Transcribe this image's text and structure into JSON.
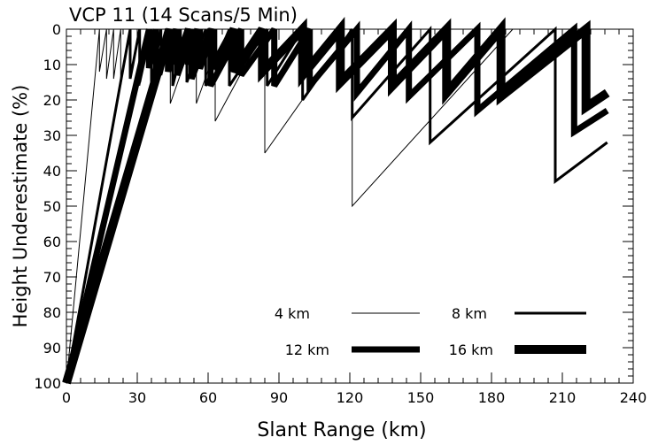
{
  "chart_data": {
    "type": "line",
    "title": "VCP 11 (14 Scans/5 Min)",
    "xlabel": "Slant Range (km)",
    "ylabel": "Height Underestimate (%)",
    "xlim": [
      0,
      240
    ],
    "ylim": [
      0,
      100
    ],
    "y_axis_inverted": true,
    "xticks": [
      0,
      30,
      60,
      90,
      120,
      150,
      180,
      210,
      240
    ],
    "yticks": [
      0,
      10,
      20,
      30,
      40,
      50,
      60,
      70,
      80,
      90,
      100
    ],
    "grid": false,
    "legend_position": "bottom-right",
    "series": [
      {
        "name": "4 km",
        "points": [
          [
            0,
            100
          ],
          [
            14,
            0
          ],
          [
            14,
            12
          ],
          [
            17,
            0
          ],
          [
            17,
            14
          ],
          [
            20,
            0
          ],
          [
            20,
            14
          ],
          [
            23,
            0
          ],
          [
            23,
            16
          ],
          [
            27,
            0
          ],
          [
            27,
            14
          ],
          [
            31,
            0
          ],
          [
            31,
            16
          ],
          [
            36,
            0
          ],
          [
            36,
            16
          ],
          [
            44,
            0
          ],
          [
            44,
            21
          ],
          [
            55,
            0
          ],
          [
            55,
            21
          ],
          [
            63,
            6
          ],
          [
            63,
            26
          ],
          [
            84,
            0
          ],
          [
            84,
            35
          ],
          [
            121,
            0
          ],
          [
            121,
            50
          ],
          [
            189,
            0
          ]
        ]
      },
      {
        "name": "8 km",
        "points": [
          [
            0,
            100
          ],
          [
            27,
            0
          ],
          [
            27,
            14
          ],
          [
            31,
            0
          ],
          [
            31,
            15
          ],
          [
            36,
            0
          ],
          [
            36,
            16
          ],
          [
            40,
            0
          ],
          [
            40,
            13
          ],
          [
            45,
            0
          ],
          [
            45,
            16
          ],
          [
            51,
            0
          ],
          [
            51,
            15
          ],
          [
            59,
            0
          ],
          [
            59,
            16
          ],
          [
            69,
            0
          ],
          [
            69,
            16
          ],
          [
            85,
            0
          ],
          [
            85,
            16
          ],
          [
            100,
            0
          ],
          [
            100,
            20
          ],
          [
            121,
            0
          ],
          [
            121,
            25
          ],
          [
            154,
            0
          ],
          [
            154,
            32
          ],
          [
            207,
            0
          ],
          [
            207,
            43
          ],
          [
            229,
            32
          ]
        ]
      },
      {
        "name": "12 km",
        "points": [
          [
            0,
            100
          ],
          [
            35,
            0
          ],
          [
            35,
            11
          ],
          [
            38,
            0
          ],
          [
            38,
            12
          ],
          [
            43,
            0
          ],
          [
            43,
            12
          ],
          [
            47,
            0
          ],
          [
            47,
            13
          ],
          [
            53,
            0
          ],
          [
            53,
            14
          ],
          [
            61,
            0
          ],
          [
            61,
            16
          ],
          [
            74,
            0
          ],
          [
            74,
            13
          ],
          [
            88,
            0
          ],
          [
            88,
            16
          ],
          [
            103,
            0
          ],
          [
            103,
            16
          ],
          [
            123,
            0
          ],
          [
            123,
            18
          ],
          [
            145,
            0
          ],
          [
            145,
            19
          ],
          [
            174,
            0
          ],
          [
            174,
            23
          ],
          [
            215,
            0
          ],
          [
            215,
            29
          ],
          [
            229,
            23
          ]
        ]
      },
      {
        "name": "16 km",
        "points": [
          [
            0,
            100
          ],
          [
            44,
            0
          ],
          [
            44,
            9
          ],
          [
            47,
            0
          ],
          [
            47,
            10
          ],
          [
            52,
            0
          ],
          [
            52,
            10
          ],
          [
            56,
            0
          ],
          [
            56,
            11
          ],
          [
            62,
            0
          ],
          [
            62,
            11
          ],
          [
            71,
            0
          ],
          [
            71,
            12
          ],
          [
            83,
            0
          ],
          [
            83,
            12
          ],
          [
            100,
            0
          ],
          [
            100,
            13
          ],
          [
            116,
            0
          ],
          [
            116,
            15
          ],
          [
            138,
            0
          ],
          [
            138,
            16
          ],
          [
            161,
            0
          ],
          [
            161,
            18
          ],
          [
            184,
            0
          ],
          [
            184,
            19
          ],
          [
            220,
            0
          ],
          [
            220,
            22
          ],
          [
            229,
            18
          ]
        ]
      }
    ]
  },
  "style": {
    "background": "#ffffff",
    "foreground": "#000000",
    "series_widths": {
      "4 km": 1,
      "8 km": 3,
      "12 km": 7,
      "16 km": 10
    }
  }
}
